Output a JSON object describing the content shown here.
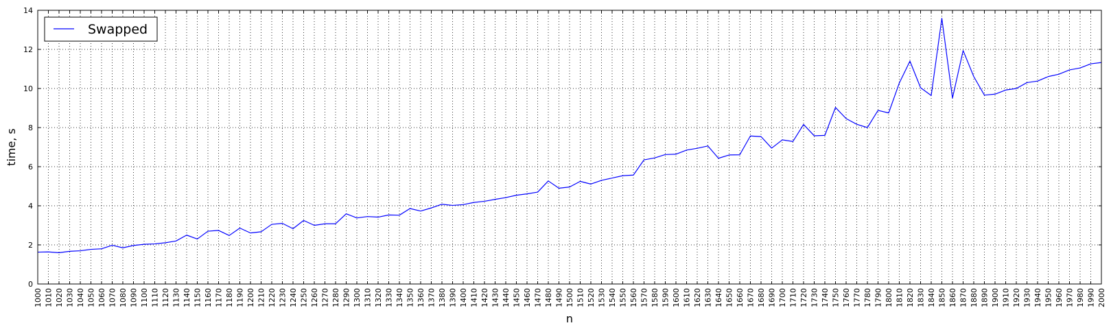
{
  "chart_data": {
    "type": "line",
    "title": "",
    "xlabel": "n",
    "ylabel": "time, s",
    "xlim": [
      1000,
      2000
    ],
    "ylim": [
      0,
      14
    ],
    "grid": true,
    "legend_position": "top-left",
    "x_ticks": [
      "1000",
      "1010",
      "1020",
      "1030",
      "1040",
      "1050",
      "1060",
      "1070",
      "1080",
      "1090",
      "1100",
      "1110",
      "1120",
      "1130",
      "1140",
      "1150",
      "1160",
      "1170",
      "1180",
      "1190",
      "1200",
      "1210",
      "1220",
      "1230",
      "1240",
      "1250",
      "1260",
      "1270",
      "1280",
      "1290",
      "1300",
      "1310",
      "1320",
      "1330",
      "1340",
      "1350",
      "1360",
      "1370",
      "1380",
      "1390",
      "1400",
      "1410",
      "1420",
      "1430",
      "1440",
      "1450",
      "1460",
      "1470",
      "1480",
      "1490",
      "1500",
      "1510",
      "1520",
      "1530",
      "1540",
      "1550",
      "1560",
      "1570",
      "1580",
      "1590",
      "1600",
      "1610",
      "1620",
      "1630",
      "1640",
      "1650",
      "1660",
      "1670",
      "1680",
      "1690",
      "1700",
      "1710",
      "1720",
      "1730",
      "1740",
      "1750",
      "1760",
      "1770",
      "1780",
      "1790",
      "1800",
      "1810",
      "1820",
      "1830",
      "1840",
      "1850",
      "1860",
      "1870",
      "1880",
      "1890",
      "1900",
      "1910",
      "1920",
      "1930",
      "1940",
      "1950",
      "1960",
      "1970",
      "1980",
      "1990",
      "2000"
    ],
    "y_ticks": [
      "0",
      "2",
      "4",
      "6",
      "8",
      "10",
      "12",
      "14"
    ],
    "series": [
      {
        "name": "Swapped",
        "color": "#0000ff",
        "x": [
          1000,
          1010,
          1020,
          1030,
          1040,
          1050,
          1060,
          1070,
          1080,
          1090,
          1100,
          1110,
          1120,
          1130,
          1140,
          1150,
          1160,
          1170,
          1180,
          1190,
          1200,
          1210,
          1220,
          1230,
          1240,
          1250,
          1260,
          1270,
          1280,
          1290,
          1300,
          1310,
          1320,
          1330,
          1340,
          1350,
          1360,
          1370,
          1380,
          1390,
          1400,
          1410,
          1420,
          1430,
          1440,
          1450,
          1460,
          1470,
          1480,
          1490,
          1500,
          1510,
          1520,
          1530,
          1540,
          1550,
          1560,
          1570,
          1580,
          1590,
          1600,
          1610,
          1620,
          1630,
          1640,
          1650,
          1660,
          1670,
          1680,
          1690,
          1700,
          1710,
          1720,
          1730,
          1740,
          1750,
          1760,
          1770,
          1780,
          1790,
          1800,
          1810,
          1820,
          1830,
          1840,
          1850,
          1860,
          1870,
          1880,
          1890,
          1900,
          1910,
          1920,
          1930,
          1940,
          1950,
          1960,
          1970,
          1980,
          1990,
          2000
        ],
        "values": [
          1.63,
          1.64,
          1.6,
          1.67,
          1.7,
          1.77,
          1.8,
          1.98,
          1.85,
          1.97,
          2.03,
          2.05,
          2.11,
          2.2,
          2.5,
          2.3,
          2.7,
          2.74,
          2.48,
          2.86,
          2.61,
          2.67,
          3.05,
          3.1,
          2.83,
          3.25,
          3.0,
          3.08,
          3.08,
          3.59,
          3.38,
          3.45,
          3.42,
          3.53,
          3.52,
          3.86,
          3.73,
          3.89,
          4.08,
          4.02,
          4.06,
          4.17,
          4.23,
          4.33,
          4.42,
          4.54,
          4.61,
          4.7,
          5.27,
          4.9,
          4.96,
          5.25,
          5.11,
          5.3,
          5.42,
          5.54,
          5.57,
          6.35,
          6.45,
          6.62,
          6.64,
          6.85,
          6.94,
          7.06,
          6.43,
          6.6,
          6.61,
          7.57,
          7.54,
          6.95,
          7.37,
          7.29,
          8.16,
          7.58,
          7.6,
          9.03,
          8.46,
          8.17,
          8.0,
          8.88,
          8.75,
          10.28,
          11.4,
          10.04,
          9.64,
          13.59,
          9.51,
          11.94,
          10.61,
          9.66,
          9.71,
          9.92,
          10.0,
          10.3,
          10.38,
          10.61,
          10.73,
          10.95,
          11.05,
          11.26,
          11.33
        ]
      }
    ]
  }
}
